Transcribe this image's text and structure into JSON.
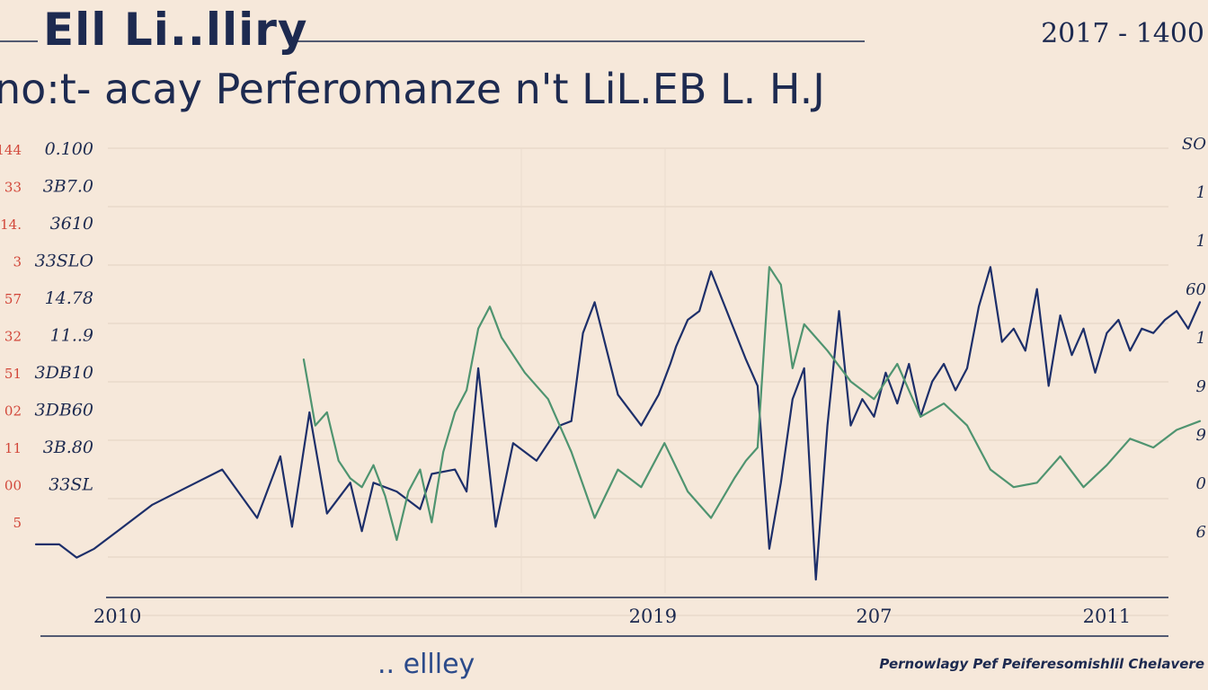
{
  "header": {
    "brand": "Ell Li..lliry",
    "date": "2017 - 1400"
  },
  "footer": {
    "logo": ".. ellley",
    "caption": "Pernowlagy Pef Peiferesomishlil Chelavere"
  },
  "colors": {
    "background": "#f6e8da",
    "series_navy": "#1d2f6a",
    "series_green": "#4f9470",
    "text": "#1d2a50",
    "left_outer_labels": "#d2473a"
  },
  "chart_data": {
    "type": "line",
    "title": "no:t- acay Perferomanze n't LiL.EB L. H.J",
    "xlabel": "",
    "ylabel": "",
    "x_ticks": [
      {
        "label": "2010",
        "x": 0.07
      },
      {
        "label": "2019",
        "x": 0.53
      },
      {
        "label": "207",
        "x": 0.72
      },
      {
        "label": "2011",
        "x": 0.92
      }
    ],
    "ylim": [
      0,
      10
    ],
    "y_labels_left": [
      "0.100",
      "3B7.0",
      "3610",
      "33SLO",
      "14.78",
      "11..9",
      "3DB10",
      "3DB60",
      "3B.80",
      "33SL"
    ],
    "y_labels_outer_left": [
      "144",
      "33",
      "14.",
      "3",
      "57",
      "32",
      "51",
      "02",
      "11",
      "00",
      "5"
    ],
    "y_labels_right": [
      "SO",
      "1",
      "1",
      "60",
      "1",
      "9",
      "9",
      "0",
      "6"
    ],
    "grid": true,
    "legend": "none",
    "series": [
      {
        "color": "#1d2f6a",
        "x": [
          0,
          0.02,
          0.035,
          0.05,
          0.07,
          0.1,
          0.13,
          0.16,
          0.19,
          0.21,
          0.22,
          0.235,
          0.25,
          0.27,
          0.28,
          0.29,
          0.31,
          0.33,
          0.34,
          0.36,
          0.37,
          0.38,
          0.395,
          0.41,
          0.43,
          0.45,
          0.46,
          0.47,
          0.48,
          0.5,
          0.52,
          0.535,
          0.545,
          0.55,
          0.56,
          0.57,
          0.58,
          0.595,
          0.61,
          0.62,
          0.63,
          0.64,
          0.65,
          0.66,
          0.67,
          0.68,
          0.69,
          0.7,
          0.71,
          0.72,
          0.73,
          0.74,
          0.75,
          0.76,
          0.77,
          0.78,
          0.79,
          0.8,
          0.81,
          0.82,
          0.83,
          0.84,
          0.85,
          0.86,
          0.87,
          0.88,
          0.89,
          0.9,
          0.91,
          0.92,
          0.93,
          0.94,
          0.95,
          0.96,
          0.97,
          0.98,
          0.99,
          1.0
        ],
        "y": [
          0.9,
          0.9,
          0.6,
          0.8,
          1.2,
          1.8,
          2.2,
          2.6,
          1.5,
          2.9,
          1.3,
          3.9,
          1.6,
          2.3,
          1.2,
          2.3,
          2.1,
          1.7,
          2.5,
          2.6,
          2.1,
          4.9,
          1.3,
          3.2,
          2.8,
          3.6,
          3.7,
          5.7,
          6.4,
          4.3,
          3.6,
          4.3,
          5.0,
          5.4,
          6.0,
          6.2,
          7.1,
          6.1,
          5.1,
          4.5,
          0.8,
          2.3,
          4.2,
          4.9,
          0.1,
          3.6,
          6.2,
          3.6,
          4.2,
          3.8,
          4.8,
          4.1,
          5.0,
          3.8,
          4.6,
          5.0,
          4.4,
          4.9,
          6.3,
          7.2,
          5.5,
          5.8,
          5.3,
          6.7,
          4.5,
          6.1,
          5.2,
          5.8,
          4.8,
          5.7,
          6.0,
          5.3,
          5.8,
          5.7,
          6.0,
          6.2,
          5.8,
          6.4
        ]
      },
      {
        "color": "#4f9470",
        "x": [
          0.23,
          0.24,
          0.25,
          0.26,
          0.27,
          0.28,
          0.29,
          0.3,
          0.31,
          0.32,
          0.33,
          0.34,
          0.35,
          0.36,
          0.37,
          0.38,
          0.39,
          0.4,
          0.42,
          0.44,
          0.46,
          0.48,
          0.5,
          0.52,
          0.54,
          0.56,
          0.58,
          0.6,
          0.61,
          0.62,
          0.63,
          0.64,
          0.65,
          0.66,
          0.68,
          0.7,
          0.72,
          0.74,
          0.76,
          0.78,
          0.8,
          0.82,
          0.84,
          0.86,
          0.88,
          0.9,
          0.92,
          0.94,
          0.96,
          0.98,
          1.0
        ],
        "y": [
          5.1,
          3.6,
          3.9,
          2.8,
          2.4,
          2.2,
          2.7,
          2.0,
          1.0,
          2.1,
          2.6,
          1.4,
          3.0,
          3.9,
          4.4,
          5.8,
          6.3,
          5.6,
          4.8,
          4.2,
          3.0,
          1.5,
          2.6,
          2.2,
          3.2,
          2.1,
          1.5,
          2.4,
          2.8,
          3.1,
          7.2,
          6.8,
          4.9,
          5.9,
          5.3,
          4.6,
          4.2,
          5.0,
          3.8,
          4.1,
          3.6,
          2.6,
          2.2,
          2.3,
          2.9,
          2.2,
          2.7,
          3.3,
          3.1,
          3.5,
          3.7
        ]
      }
    ]
  }
}
